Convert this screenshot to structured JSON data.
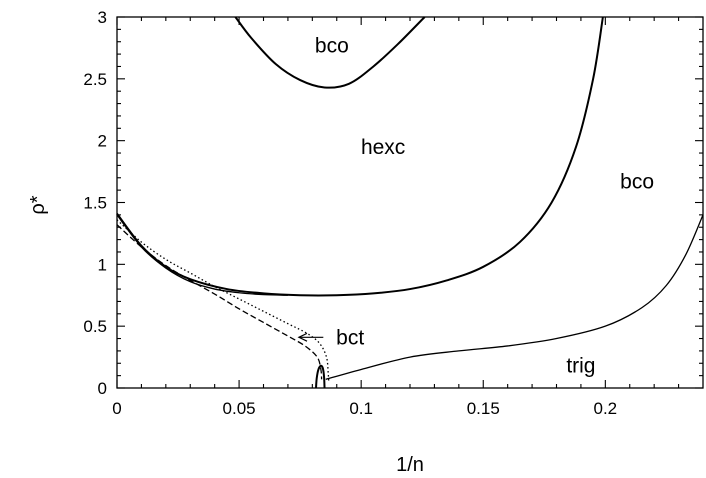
{
  "chart_data": {
    "type": "line",
    "title": "",
    "xlabel": "1/n",
    "ylabel": "ρ*",
    "xlim": [
      0,
      0.24
    ],
    "ylim": [
      0,
      3
    ],
    "grid": false,
    "x_ticks": [
      {
        "value": 0,
        "label": "0"
      },
      {
        "value": 0.05,
        "label": "0.05"
      },
      {
        "value": 0.1,
        "label": "0.1"
      },
      {
        "value": 0.15,
        "label": "0.15"
      },
      {
        "value": 0.2,
        "label": "0.2"
      }
    ],
    "y_ticks": [
      {
        "value": 0,
        "label": "0"
      },
      {
        "value": 0.5,
        "label": "0.5"
      },
      {
        "value": 1,
        "label": "1"
      },
      {
        "value": 1.5,
        "label": "1.5"
      },
      {
        "value": 2,
        "label": "2"
      },
      {
        "value": 2.5,
        "label": "2.5"
      },
      {
        "value": 3,
        "label": "3"
      }
    ],
    "series": [
      {
        "style": "solid-thick",
        "points": [
          [
            0.0485,
            3.0
          ],
          [
            0.055,
            2.83
          ],
          [
            0.065,
            2.62
          ],
          [
            0.075,
            2.49
          ],
          [
            0.085,
            2.43
          ],
          [
            0.095,
            2.46
          ],
          [
            0.105,
            2.6
          ],
          [
            0.115,
            2.78
          ],
          [
            0.126,
            3.0
          ]
        ]
      },
      {
        "style": "solid-thick",
        "points": [
          [
            0.0,
            1.41
          ],
          [
            0.01,
            1.15
          ],
          [
            0.02,
            0.98
          ],
          [
            0.03,
            0.88
          ],
          [
            0.045,
            0.8
          ],
          [
            0.06,
            0.765
          ],
          [
            0.075,
            0.75
          ],
          [
            0.09,
            0.75
          ],
          [
            0.105,
            0.765
          ],
          [
            0.12,
            0.8
          ],
          [
            0.135,
            0.87
          ],
          [
            0.15,
            0.98
          ],
          [
            0.165,
            1.18
          ],
          [
            0.178,
            1.5
          ],
          [
            0.188,
            1.95
          ],
          [
            0.195,
            2.5
          ],
          [
            0.199,
            3.0
          ]
        ]
      },
      {
        "style": "solid-thin",
        "points": [
          [
            0.0,
            1.4
          ],
          [
            0.01,
            1.14
          ],
          [
            0.02,
            0.97
          ],
          [
            0.03,
            0.86
          ],
          [
            0.04,
            0.8
          ],
          [
            0.05,
            0.77
          ],
          [
            0.06,
            0.755
          ],
          [
            0.07,
            0.75
          ]
        ]
      },
      {
        "style": "solid-thin",
        "points": [
          [
            0.0855,
            0.07
          ],
          [
            0.1,
            0.15
          ],
          [
            0.12,
            0.25
          ],
          [
            0.14,
            0.3
          ],
          [
            0.16,
            0.34
          ],
          [
            0.18,
            0.4
          ],
          [
            0.2,
            0.5
          ],
          [
            0.215,
            0.65
          ],
          [
            0.225,
            0.83
          ],
          [
            0.233,
            1.08
          ],
          [
            0.24,
            1.4
          ]
        ]
      },
      {
        "style": "dashed",
        "points": [
          [
            0.0,
            1.32
          ],
          [
            0.01,
            1.14
          ],
          [
            0.02,
            0.99
          ],
          [
            0.03,
            0.87
          ],
          [
            0.04,
            0.76
          ],
          [
            0.05,
            0.64
          ],
          [
            0.06,
            0.53
          ],
          [
            0.07,
            0.42
          ],
          [
            0.077,
            0.34
          ],
          [
            0.082,
            0.25
          ],
          [
            0.0835,
            0.15
          ],
          [
            0.0838,
            0.07
          ]
        ]
      },
      {
        "style": "dotted",
        "points": [
          [
            0.0,
            1.36
          ],
          [
            0.01,
            1.18
          ],
          [
            0.02,
            1.04
          ],
          [
            0.03,
            0.93
          ],
          [
            0.04,
            0.82
          ],
          [
            0.05,
            0.72
          ],
          [
            0.06,
            0.62
          ],
          [
            0.07,
            0.52
          ],
          [
            0.078,
            0.44
          ],
          [
            0.083,
            0.36
          ],
          [
            0.0858,
            0.25
          ],
          [
            0.0865,
            0.12
          ],
          [
            0.0867,
            0.06
          ]
        ]
      },
      {
        "style": "solid-thick",
        "points": [
          [
            0.0815,
            0.0
          ],
          [
            0.0818,
            0.08
          ],
          [
            0.0825,
            0.15
          ],
          [
            0.0835,
            0.18
          ],
          [
            0.0843,
            0.16
          ],
          [
            0.0848,
            0.09
          ],
          [
            0.085,
            0.0
          ]
        ]
      }
    ],
    "annotations": [
      {
        "text": "bco",
        "x": 0.088,
        "y": 2.77
      },
      {
        "text": "hexc",
        "x": 0.109,
        "y": 1.95
      },
      {
        "text": "bco",
        "x": 0.213,
        "y": 1.67
      },
      {
        "text": "bct",
        "x": 0.0955,
        "y": 0.41
      },
      {
        "text": "trig",
        "x": 0.19,
        "y": 0.18
      }
    ],
    "arrows": [
      {
        "from": [
          0.0845,
          0.41
        ],
        "to": [
          0.0745,
          0.41
        ]
      }
    ]
  }
}
